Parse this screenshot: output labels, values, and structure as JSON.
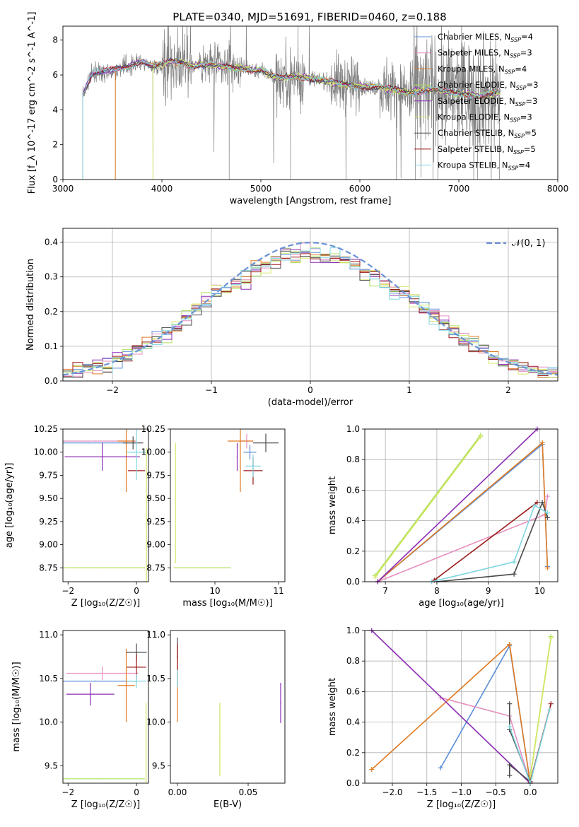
{
  "title": "PLATE=0340, MJD=51691, FIBERID=0460, z=0.188",
  "colors": {
    "Chabrier MILES": "#5b8fd9",
    "Salpeter MILES": "#e68fbf",
    "Kroupa MILES": "#e07b23",
    "Chabrier ELODIE": "#ade05a",
    "Salpeter ELODIE": "#8b2db5",
    "Kroupa ELODIE": "#d4e86a",
    "Chabrier STELIB": "#4a4a4a",
    "Salpeter STELIB": "#9b1b1b",
    "Kroupa STELIB": "#7fd6e0",
    "data": "#808080",
    "gauss": "#6a92d6"
  },
  "chart_data": [
    {
      "id": "spectrum",
      "type": "line",
      "xlabel": "wavelength [Angstrom, rest frame]",
      "ylabel": "Flux [f_λ 10^-17 erg cm^-2 s^-1 A^-1]",
      "xlim": [
        3000,
        8000
      ],
      "ylim": [
        0,
        8.8
      ],
      "xticks": [
        "3000",
        "4000",
        "5000",
        "6000",
        "7000",
        "8000"
      ],
      "yticks": [
        "0",
        "2",
        "4",
        "6",
        "8"
      ],
      "legend_placement": "right",
      "legend": [
        {
          "name": "Chabrier MILES",
          "label": "Chabrier MILES, N",
          "sub": "SSP",
          "tail": "=4"
        },
        {
          "name": "Salpeter MILES",
          "label": "Salpeter MILES, N",
          "sub": "SSP",
          "tail": "=3"
        },
        {
          "name": "Kroupa MILES",
          "label": "Kroupa MILES, N",
          "sub": "SSP",
          "tail": "=4"
        },
        {
          "name": "Chabrier ELODIE",
          "label": "Chabrier ELODIE, N",
          "sub": "SSP",
          "tail": "=3"
        },
        {
          "name": "Salpeter ELODIE",
          "label": "Salpeter ELODIE, N",
          "sub": "SSP",
          "tail": "=3"
        },
        {
          "name": "Kroupa ELODIE",
          "label": "Kroupa ELODIE, N",
          "sub": "SSP",
          "tail": "=3"
        },
        {
          "name": "Chabrier STELIB",
          "label": "Chabrier STELIB, N",
          "sub": "SSP",
          "tail": "=5"
        },
        {
          "name": "Salpeter STELIB",
          "label": "Salpeter STELIB, N",
          "sub": "SSP",
          "tail": "=5"
        },
        {
          "name": "Kroupa STELIB",
          "label": "Kroupa STELIB, N",
          "sub": "SSP",
          "tail": "=4"
        }
      ],
      "continuum": [
        [
          3200,
          4.9
        ],
        [
          3300,
          6.1
        ],
        [
          3400,
          6.2
        ],
        [
          3500,
          6.3
        ],
        [
          3600,
          6.4
        ],
        [
          3700,
          6.6
        ],
        [
          3800,
          6.8
        ],
        [
          3900,
          6.5
        ],
        [
          4000,
          6.6
        ],
        [
          4100,
          6.8
        ],
        [
          4200,
          6.7
        ],
        [
          4300,
          6.5
        ],
        [
          4400,
          6.6
        ],
        [
          4500,
          6.6
        ],
        [
          4600,
          6.5
        ],
        [
          4700,
          6.4
        ],
        [
          4800,
          6.4
        ],
        [
          4900,
          6.3
        ],
        [
          5000,
          6.3
        ],
        [
          5100,
          6.0
        ],
        [
          5200,
          5.8
        ],
        [
          5300,
          5.9
        ],
        [
          5400,
          5.9
        ],
        [
          5500,
          5.8
        ],
        [
          5600,
          5.7
        ],
        [
          5700,
          5.6
        ],
        [
          5800,
          5.5
        ],
        [
          5900,
          5.4
        ],
        [
          6000,
          5.4
        ],
        [
          6100,
          5.3
        ],
        [
          6200,
          5.3
        ],
        [
          6300,
          5.2
        ],
        [
          6400,
          5.1
        ],
        [
          6500,
          5.0
        ],
        [
          6600,
          5.1
        ],
        [
          6700,
          5.2
        ],
        [
          6800,
          5.1
        ],
        [
          6900,
          5.0
        ],
        [
          7000,
          4.9
        ],
        [
          7100,
          4.9
        ],
        [
          7200,
          4.8
        ],
        [
          7300,
          4.9
        ],
        [
          7400,
          5.0
        ]
      ],
      "data_dropouts": [
        3200,
        3530,
        3910,
        4680,
        5300,
        5860,
        6370,
        6560,
        6740,
        6790,
        7190,
        7410
      ],
      "model_starts": {
        "Kroupa MILES": 3530,
        "Kroupa ELODIE": 3910,
        "Chabrier ELODIE": 3910
      }
    },
    {
      "id": "residuals",
      "type": "line",
      "xlabel": "(data-model)/error",
      "ylabel": "Normed distribution",
      "xlim": [
        -2.5,
        2.5
      ],
      "ylim": [
        0,
        0.44
      ],
      "xticks": [
        "−2",
        "−1",
        "0",
        "1",
        "2"
      ],
      "yticks": [
        "0.0",
        "0.1",
        "0.2",
        "0.3",
        "0.4"
      ],
      "legend_placement": "upper right",
      "gauss_label": "𝒩(0, 1)",
      "bin_width": 0.1,
      "grid": true
    },
    {
      "id": "age_vs_Z",
      "type": "scatter",
      "xlabel": "Z [log₁₀(Z/Z☉)]",
      "ylabel": "age  [log₁₀(age/yr)]",
      "xlim": [
        -2.15,
        0.35
      ],
      "ylim": [
        8.6,
        10.25
      ],
      "xticks": [
        "−2",
        "0"
      ],
      "yticks": [
        "8.75",
        "9.00",
        "9.25",
        "9.50",
        "9.75",
        "10.00",
        "10.25"
      ],
      "points": [
        {
          "s": "Chabrier MILES",
          "x": -1.4,
          "xe": 1.4,
          "y": 10.1
        },
        {
          "s": "Salpeter MILES",
          "x": -1.2,
          "xe": 1.2,
          "y": 10.12
        },
        {
          "s": "Kroupa MILES",
          "x": -0.3,
          "xe": 0.25,
          "y": 10.12,
          "ye": 0.55
        },
        {
          "s": "Salpeter ELODIE",
          "x": -1.0,
          "xe": 1.1,
          "y": 9.95,
          "ye": 0.15
        },
        {
          "s": "Chabrier ELODIE",
          "x": -1.0,
          "xe": 1.25,
          "y": 8.75
        },
        {
          "s": "Kroupa ELODIE",
          "x": 0.29,
          "y": 9.3,
          "ye": 0.75
        },
        {
          "s": "Chabrier STELIB",
          "x": -0.1,
          "xe": 0.3,
          "y": 10.1,
          "ye": 0.07
        },
        {
          "s": "Salpeter STELIB",
          "x": 0.0,
          "xe": 0.25,
          "y": 9.8
        },
        {
          "s": "Kroupa STELIB",
          "x": 0.0,
          "xe": 0.28,
          "y": 10.0,
          "ye": 0.3
        }
      ]
    },
    {
      "id": "age_vs_mass",
      "type": "scatter",
      "xlabel": "mass [log₁₀(M/M☉)]",
      "xlim": [
        9.3,
        11.1
      ],
      "ylim": [
        8.6,
        10.25
      ],
      "xticks": [
        "10",
        "11"
      ],
      "yticks": [
        "8.75",
        "9.00",
        "9.25",
        "9.50",
        "9.75",
        "10.00",
        "10.25"
      ],
      "points": [
        {
          "s": "Chabrier MILES",
          "x": 10.55,
          "xe": 0.1,
          "y": 10.0,
          "ye": 0.08
        },
        {
          "s": "Salpeter MILES",
          "x": 10.5,
          "xe": 0.1,
          "y": 10.12,
          "ye": 0.08
        },
        {
          "s": "Kroupa MILES",
          "x": 10.4,
          "xe": 0.2,
          "y": 10.12,
          "ye": 0.55
        },
        {
          "s": "Salpeter ELODIE",
          "x": 10.35,
          "y": 9.95,
          "ye": 0.15
        },
        {
          "s": "Chabrier ELODIE",
          "x": 9.8,
          "xe": 0.45,
          "y": 8.75
        },
        {
          "s": "Kroupa ELODIE",
          "x": 9.38,
          "y": 9.45,
          "ye": 0.65
        },
        {
          "s": "Chabrier STELIB",
          "x": 10.8,
          "xe": 0.2,
          "y": 10.1,
          "ye": 0.1
        },
        {
          "s": "Salpeter STELIB",
          "x": 10.6,
          "xe": 0.15,
          "y": 9.8,
          "ye": 0.15
        },
        {
          "s": "Kroupa STELIB",
          "x": 10.6,
          "xe": 0.12,
          "y": 9.85,
          "ye": 0.12
        }
      ]
    },
    {
      "id": "weight_vs_age",
      "type": "line",
      "xlabel": "age  [log₁₀(age/yr)]",
      "ylabel": "mass weight",
      "xlim": [
        6.6,
        10.35
      ],
      "ylim": [
        0,
        1
      ],
      "xticks": [
        "7",
        "8",
        "9",
        "10"
      ],
      "yticks": [
        "0.0",
        "0.2",
        "0.4",
        "0.6",
        "0.8",
        "1.0"
      ],
      "grid": true,
      "series": [
        {
          "s": "Chabrier MILES",
          "x": [
            6.85,
            10.05,
            10.15
          ],
          "y": [
            0.0,
            0.9,
            0.1
          ]
        },
        {
          "s": "Salpeter MILES",
          "x": [
            6.85,
            10.1,
            10.15
          ],
          "y": [
            0.0,
            0.44,
            0.56
          ]
        },
        {
          "s": "Kroupa MILES",
          "x": [
            6.85,
            10.05,
            10.15
          ],
          "y": [
            0.0,
            0.91,
            0.09
          ]
        },
        {
          "s": "Chabrier ELODIE",
          "x": [
            6.8,
            8.85
          ],
          "y": [
            0.04,
            0.96
          ]
        },
        {
          "s": "Salpeter ELODIE",
          "x": [
            6.85,
            9.95
          ],
          "y": [
            0.0,
            1.0
          ]
        },
        {
          "s": "Kroupa ELODIE",
          "x": [
            6.8,
            8.85
          ],
          "y": [
            0.03,
            0.95
          ]
        },
        {
          "s": "Chabrier STELIB",
          "x": [
            8.0,
            9.5,
            10.05,
            10.15
          ],
          "y": [
            0.0,
            0.05,
            0.52,
            0.42
          ]
        },
        {
          "s": "Salpeter STELIB",
          "x": [
            7.95,
            9.95
          ],
          "y": [
            0.01,
            0.52
          ]
        },
        {
          "s": "Kroupa STELIB",
          "x": [
            7.9,
            9.5,
            9.9,
            10.15
          ],
          "y": [
            0.0,
            0.13,
            0.5,
            0.45
          ]
        }
      ]
    },
    {
      "id": "mass_vs_Z",
      "type": "scatter",
      "xlabel": "Z [log₁₀(Z/Z☉)]",
      "ylabel": "mass [log₁₀(M/M☉)]",
      "xlim": [
        -2.15,
        0.35
      ],
      "ylim": [
        9.3,
        11.05
      ],
      "xticks": [
        "−2",
        "0"
      ],
      "yticks": [
        "9.5",
        "10.0",
        "10.5",
        "11.0"
      ],
      "points": [
        {
          "s": "Chabrier MILES",
          "x": -1.2,
          "xe": 1.2,
          "y": 10.47
        },
        {
          "s": "Salpeter MILES",
          "x": -1.0,
          "xe": 1.05,
          "y": 10.56,
          "ye": 0.08
        },
        {
          "s": "Kroupa MILES",
          "x": -0.3,
          "xe": 0.25,
          "y": 10.42,
          "ye": 0.42
        },
        {
          "s": "Salpeter ELODIE",
          "x": -1.35,
          "xe": 0.7,
          "y": 10.32,
          "ye": 0.13
        },
        {
          "s": "Chabrier ELODIE",
          "x": -1.0,
          "xe": 1.25,
          "y": 9.35
        },
        {
          "s": "Kroupa ELODIE",
          "x": 0.28,
          "y": 9.7,
          "ye": 0.52
        },
        {
          "s": "Chabrier STELIB",
          "x": 0.0,
          "xe": 0.3,
          "y": 10.8,
          "ye": 0.1
        },
        {
          "s": "Salpeter STELIB",
          "x": 0.0,
          "xe": 0.28,
          "y": 10.63,
          "ye": 0.15
        },
        {
          "s": "Kroupa STELIB",
          "x": 0.0,
          "xe": 0.28,
          "y": 10.47,
          "ye": 0.08
        }
      ]
    },
    {
      "id": "mass_vs_EBV",
      "type": "scatter",
      "xlabel": "E(B-V)",
      "xlim": [
        -0.005,
        0.076
      ],
      "ylim": [
        9.3,
        11.05
      ],
      "xticks": [
        "0.00",
        "0.05"
      ],
      "yticks": [
        "9.5",
        "10.0",
        "10.5",
        "11.0"
      ],
      "points": [
        {
          "s": "Chabrier MILES",
          "x": 0.0,
          "y": 10.47,
          "ye": 0.05
        },
        {
          "s": "Salpeter MILES",
          "x": 0.0,
          "y": 10.56,
          "ye": 0.08
        },
        {
          "s": "Kroupa MILES",
          "x": 0.0,
          "y": 10.42,
          "ye": 0.42
        },
        {
          "s": "Salpeter ELODIE",
          "x": 0.073,
          "y": 10.22,
          "ye": 0.23
        },
        {
          "s": "Chabrier ELODIE",
          "x": 0.03,
          "y": 9.8,
          "ye": 0.42
        },
        {
          "s": "Kroupa ELODIE",
          "x": 0.03,
          "y": 9.8,
          "ye": 0.42
        },
        {
          "s": "Chabrier STELIB",
          "x": 0.0,
          "y": 10.85,
          "ye": 0.12
        },
        {
          "s": "Salpeter STELIB",
          "x": 0.0,
          "y": 10.75,
          "ye": 0.15
        },
        {
          "s": "Kroupa STELIB",
          "x": 0.0,
          "y": 10.5,
          "ye": 0.1
        }
      ]
    },
    {
      "id": "weight_vs_Z",
      "type": "line",
      "xlabel": "Z [log₁₀(Z/Z☉)]",
      "ylabel": "mass weight",
      "xlim": [
        -2.4,
        0.4
      ],
      "ylim": [
        0,
        1
      ],
      "xticks": [
        "−2.0",
        "−1.5",
        "−1.0",
        "−0.5",
        "0.0"
      ],
      "yticks": [
        "0.0",
        "0.2",
        "0.4",
        "0.6",
        "0.8",
        "1.0"
      ],
      "grid": true,
      "series": [
        {
          "s": "Chabrier MILES",
          "x": [
            -1.3,
            -0.3,
            0.0
          ],
          "y": [
            0.1,
            0.9,
            0.0
          ]
        },
        {
          "s": "Salpeter MILES",
          "x": [
            -1.3,
            -0.3,
            0.0
          ],
          "y": [
            0.56,
            0.44,
            0.0
          ]
        },
        {
          "s": "Kroupa MILES",
          "x": [
            -2.3,
            -0.3,
            0.0
          ],
          "y": [
            0.09,
            0.91,
            0.0
          ]
        },
        {
          "s": "Chabrier ELODIE",
          "x": [
            0.0,
            0.3
          ],
          "y": [
            0.04,
            0.96
          ]
        },
        {
          "s": "Salpeter ELODIE",
          "x": [
            -2.3,
            0.0
          ],
          "y": [
            1.0,
            0.0
          ]
        },
        {
          "s": "Kroupa ELODIE",
          "x": [
            0.0,
            0.3
          ],
          "y": [
            0.03,
            0.95
          ]
        },
        {
          "s": "Chabrier STELIB",
          "x": [
            -0.3,
            -0.3,
            0.0,
            -0.3,
            -0.3
          ],
          "y": [
            0.52,
            0.35,
            0.01,
            0.12,
            0.05
          ]
        },
        {
          "s": "Salpeter STELIB",
          "x": [
            0.0,
            0.3
          ],
          "y": [
            0.01,
            0.52
          ]
        },
        {
          "s": "Kroupa STELIB",
          "x": [
            -0.3,
            0.0,
            0.28
          ],
          "y": [
            0.37,
            0.0,
            0.48
          ]
        }
      ]
    }
  ]
}
